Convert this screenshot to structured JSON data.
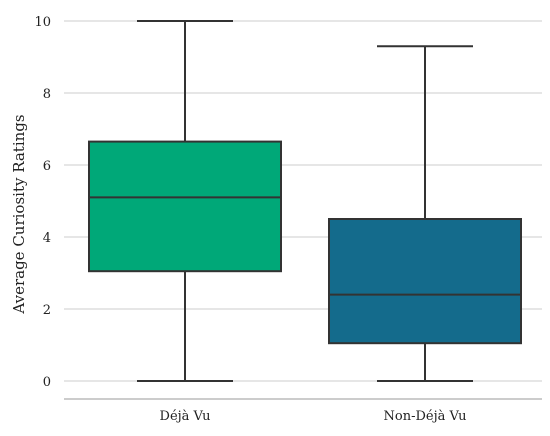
{
  "chart_data": {
    "type": "box",
    "title": "",
    "xlabel": "",
    "ylabel": "Average Curiosity Ratings",
    "ylim": [
      -0.5,
      10.3
    ],
    "yticks": [
      "0",
      "2",
      "4",
      "6",
      "8",
      "10"
    ],
    "grid": true,
    "categories": [
      "Déjà Vu",
      "Non-Déjà Vu"
    ],
    "boxes": [
      {
        "category": "Déjà Vu",
        "whisker_low": 0,
        "q1": 3.05,
        "median": 5.1,
        "q3": 6.65,
        "whisker_high": 10,
        "color": "#00a878"
      },
      {
        "category": "Non-Déjà Vu",
        "whisker_low": 0,
        "q1": 1.05,
        "median": 2.4,
        "q3": 4.5,
        "whisker_high": 9.3,
        "color": "#146b8c"
      }
    ]
  }
}
